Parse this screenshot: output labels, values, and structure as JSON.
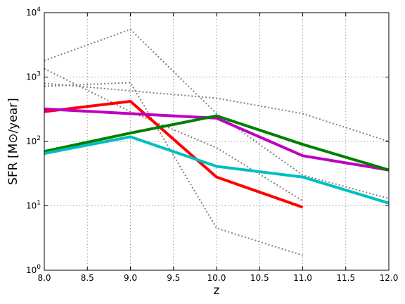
{
  "chart_data": {
    "type": "line",
    "title": "",
    "xlabel": "z",
    "ylabel": "SFR  [M⊙/year]",
    "xlim": [
      8.0,
      12.0
    ],
    "ylim": [
      1,
      10000
    ],
    "yscale": "log",
    "grid": true,
    "xticks": [
      8.0,
      8.5,
      9.0,
      9.5,
      10.0,
      10.5,
      11.0,
      11.5,
      12.0
    ],
    "xtick_labels": [
      "8.0",
      "8.5",
      "9.0",
      "9.5",
      "10.0",
      "10.5",
      "11.0",
      "11.5",
      "12.0"
    ],
    "ytick_labels": [
      {
        "value": 1,
        "base": "10",
        "exp": "0"
      },
      {
        "value": 10,
        "base": "10",
        "exp": "1"
      },
      {
        "value": 100,
        "base": "10",
        "exp": "2"
      },
      {
        "value": 1000,
        "base": "10",
        "exp": "3"
      },
      {
        "value": 10000,
        "base": "10",
        "exp": "4"
      }
    ],
    "series": [
      {
        "style": "dotted",
        "color": "#808080",
        "x": [
          8,
          9,
          10,
          11,
          12
        ],
        "y": [
          1800,
          5500,
          270,
          30,
          13
        ]
      },
      {
        "style": "dotted",
        "color": "#808080",
        "x": [
          8,
          9,
          10,
          11
        ],
        "y": [
          1350,
          290,
          80,
          12
        ]
      },
      {
        "style": "dotted",
        "color": "#808080",
        "x": [
          8,
          9,
          10,
          11,
          12
        ],
        "y": [
          800,
          610,
          470,
          270,
          100
        ]
      },
      {
        "style": "dotted",
        "color": "#808080",
        "x": [
          8,
          9,
          10,
          11
        ],
        "y": [
          720,
          820,
          4.5,
          1.7
        ]
      },
      {
        "style": "solid",
        "color": "#ff0000",
        "x": [
          8,
          9,
          10,
          11
        ],
        "y": [
          290,
          420,
          28,
          9.5
        ]
      },
      {
        "style": "solid",
        "color": "#bf00bf",
        "x": [
          8,
          9,
          10,
          11,
          12
        ],
        "y": [
          320,
          270,
          230,
          60,
          36
        ]
      },
      {
        "style": "solid",
        "color": "#007f00",
        "x": [
          8,
          9,
          10,
          11,
          12
        ],
        "y": [
          70,
          135,
          250,
          90,
          36
        ]
      },
      {
        "style": "solid",
        "color": "#00bfbf",
        "x": [
          8,
          9,
          10,
          11,
          12
        ],
        "y": [
          65,
          118,
          41,
          28,
          11
        ]
      }
    ]
  }
}
